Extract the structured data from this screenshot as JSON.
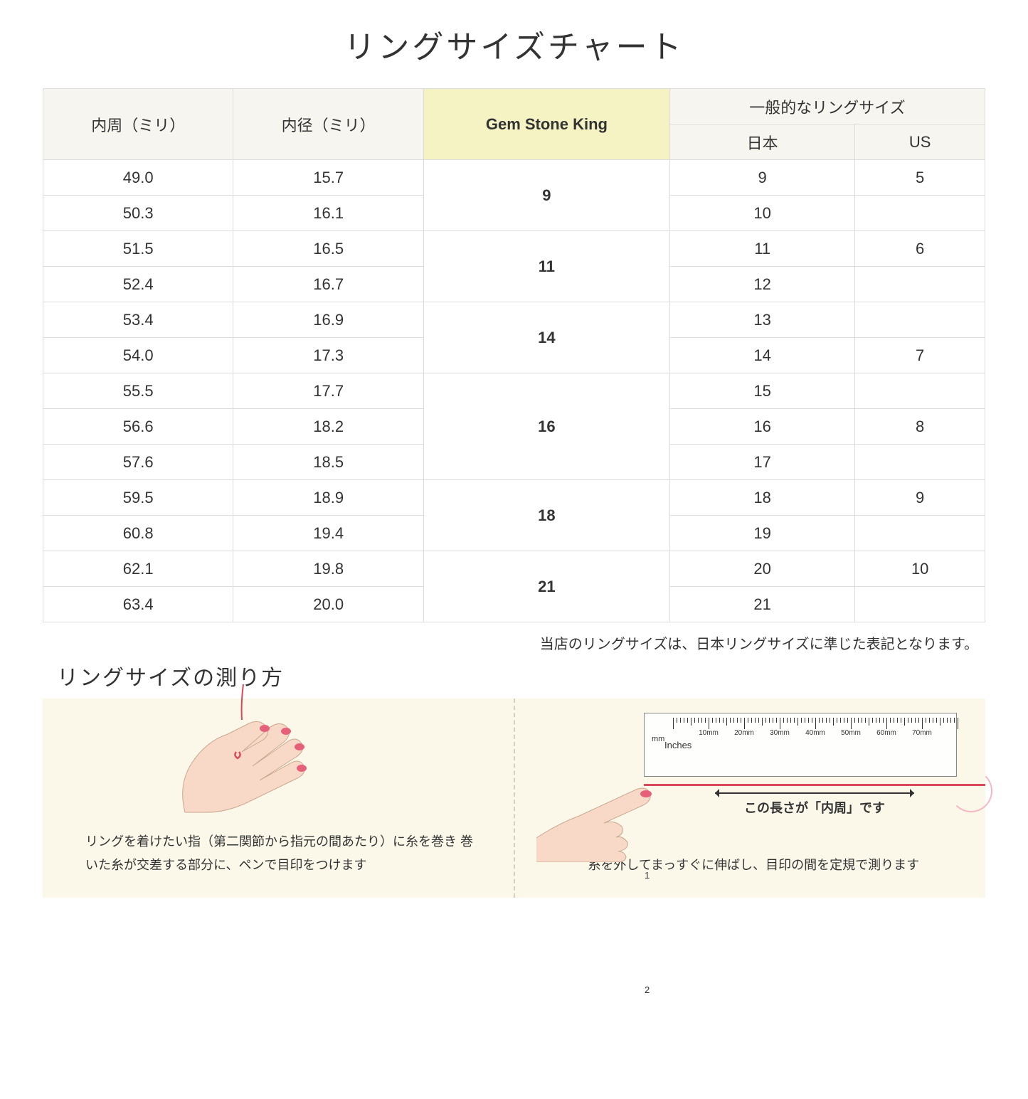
{
  "title": "リングサイズチャート",
  "table": {
    "header_top": {
      "col1": "内周（ミリ）",
      "col2": "内径（ミリ）",
      "col3": "Gem Stone King",
      "col4": "一般的なリングサイズ"
    },
    "header_sub": {
      "jp": "日本",
      "us": "US"
    },
    "groups": [
      {
        "gsk": "9",
        "rows": [
          {
            "c": "49.0",
            "d": "15.7",
            "jp": "9",
            "us": "5"
          },
          {
            "c": "50.3",
            "d": "16.1",
            "jp": "10",
            "us": ""
          }
        ]
      },
      {
        "gsk": "11",
        "rows": [
          {
            "c": "51.5",
            "d": "16.5",
            "jp": "11",
            "us": "6"
          },
          {
            "c": "52.4",
            "d": "16.7",
            "jp": "12",
            "us": ""
          }
        ]
      },
      {
        "gsk": "14",
        "rows": [
          {
            "c": "53.4",
            "d": "16.9",
            "jp": "13",
            "us": ""
          },
          {
            "c": "54.0",
            "d": "17.3",
            "jp": "14",
            "us": "7"
          }
        ]
      },
      {
        "gsk": "16",
        "rows": [
          {
            "c": "55.5",
            "d": "17.7",
            "jp": "15",
            "us": ""
          },
          {
            "c": "56.6",
            "d": "18.2",
            "jp": "16",
            "us": "8"
          },
          {
            "c": "57.6",
            "d": "18.5",
            "jp": "17",
            "us": ""
          }
        ]
      },
      {
        "gsk": "18",
        "rows": [
          {
            "c": "59.5",
            "d": "18.9",
            "jp": "18",
            "us": "9"
          },
          {
            "c": "60.8",
            "d": "19.4",
            "jp": "19",
            "us": ""
          }
        ]
      },
      {
        "gsk": "21",
        "rows": [
          {
            "c": "62.1",
            "d": "19.8",
            "jp": "20",
            "us": "10"
          },
          {
            "c": "63.4",
            "d": "20.0",
            "jp": "21",
            "us": ""
          }
        ]
      }
    ]
  },
  "note": "当店のリングサイズは、日本リングサイズに準じた表記となります。",
  "measure": {
    "title": "リングサイズの測り方",
    "left_text": "リングを着けたい指（第二関節から指元の間あたり）に糸を巻き\n巻いた糸が交差する部分に、ペンで目印をつけます",
    "right_text": "糸を外してまっすぐに伸ばし、目印の間を定規で測ります",
    "arrow_label": "この長さが「内周」です",
    "ruler": {
      "mm_label": "mm",
      "in_label": "Inches",
      "mm_marks": [
        "10mm",
        "20mm",
        "30mm",
        "40mm",
        "50mm",
        "60mm",
        "70mm"
      ],
      "in_marks": [
        "1",
        "2"
      ]
    }
  },
  "colors": {
    "header_bg": "#f7f5f0",
    "gsk_bg": "#f5f3c4",
    "border": "#dcdcdc",
    "panel_bg": "#fbf8ea",
    "skin": "#f8d9c8",
    "nail": "#e6607a",
    "thread": "#d84a5a"
  }
}
